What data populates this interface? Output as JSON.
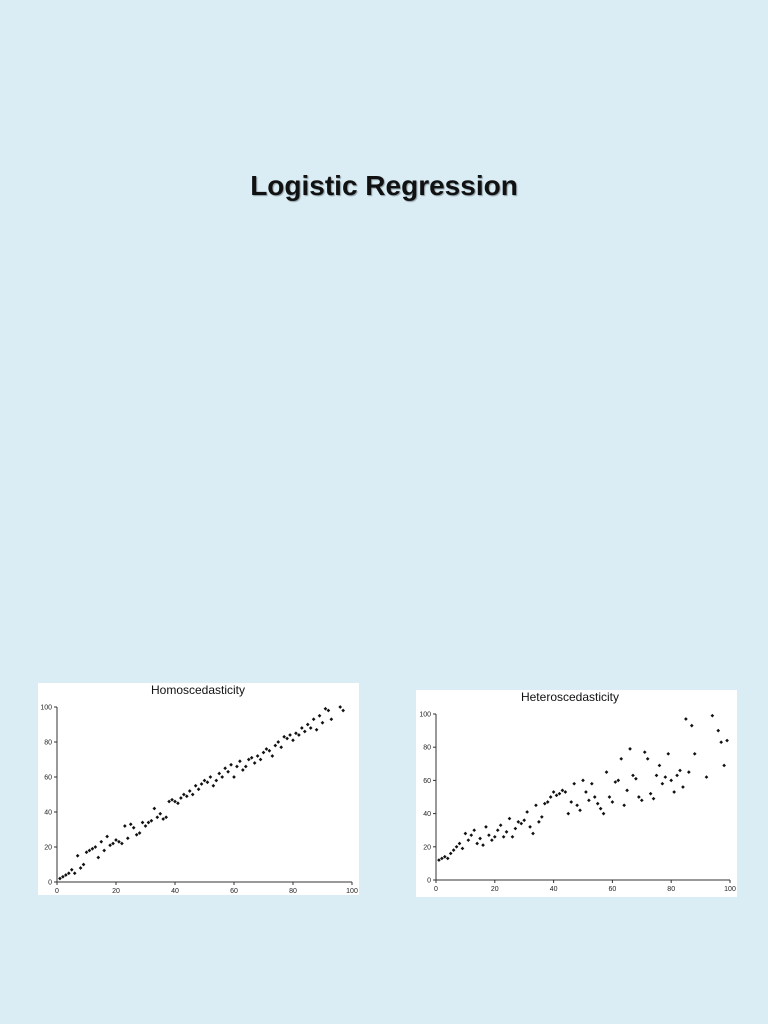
{
  "slide": {
    "title": "Logistic Regression"
  },
  "chart_data": [
    {
      "type": "scatter",
      "title": "Homoscedasticity",
      "xlabel": "",
      "ylabel": "",
      "xlim": [
        0,
        100
      ],
      "ylim": [
        0,
        100
      ],
      "x_ticks": [
        0,
        20,
        40,
        60,
        80,
        100
      ],
      "y_ticks": [
        0,
        20,
        40,
        60,
        80,
        100
      ],
      "grid": false,
      "series": [
        {
          "points": [
            [
              1,
              2
            ],
            [
              2,
              3
            ],
            [
              3,
              4
            ],
            [
              4,
              5
            ],
            [
              5,
              7
            ],
            [
              6,
              5
            ],
            [
              7,
              15
            ],
            [
              8,
              8
            ],
            [
              9,
              10
            ],
            [
              10,
              17
            ],
            [
              11,
              18
            ],
            [
              12,
              19
            ],
            [
              13,
              20
            ],
            [
              14,
              14
            ],
            [
              15,
              23
            ],
            [
              16,
              18
            ],
            [
              17,
              26
            ],
            [
              18,
              21
            ],
            [
              19,
              22
            ],
            [
              20,
              24
            ],
            [
              21,
              23
            ],
            [
              22,
              22
            ],
            [
              23,
              32
            ],
            [
              24,
              25
            ],
            [
              25,
              33
            ],
            [
              26,
              31
            ],
            [
              27,
              27
            ],
            [
              28,
              28
            ],
            [
              29,
              34
            ],
            [
              30,
              32
            ],
            [
              31,
              34
            ],
            [
              32,
              35
            ],
            [
              33,
              42
            ],
            [
              34,
              37
            ],
            [
              35,
              39
            ],
            [
              36,
              36
            ],
            [
              37,
              37
            ],
            [
              38,
              46
            ],
            [
              39,
              47
            ],
            [
              40,
              46
            ],
            [
              41,
              45
            ],
            [
              42,
              48
            ],
            [
              43,
              50
            ],
            [
              44,
              49
            ],
            [
              45,
              52
            ],
            [
              46,
              50
            ],
            [
              47,
              55
            ],
            [
              48,
              53
            ],
            [
              49,
              56
            ],
            [
              50,
              58
            ],
            [
              51,
              57
            ],
            [
              52,
              60
            ],
            [
              53,
              55
            ],
            [
              54,
              58
            ],
            [
              55,
              62
            ],
            [
              56,
              60
            ],
            [
              57,
              65
            ],
            [
              58,
              63
            ],
            [
              59,
              67
            ],
            [
              60,
              60
            ],
            [
              61,
              66
            ],
            [
              62,
              69
            ],
            [
              63,
              64
            ],
            [
              64,
              66
            ],
            [
              65,
              70
            ],
            [
              66,
              71
            ],
            [
              67,
              68
            ],
            [
              68,
              72
            ],
            [
              69,
              70
            ],
            [
              70,
              74
            ],
            [
              71,
              76
            ],
            [
              72,
              75
            ],
            [
              73,
              72
            ],
            [
              74,
              78
            ],
            [
              75,
              80
            ],
            [
              76,
              77
            ],
            [
              77,
              83
            ],
            [
              78,
              82
            ],
            [
              79,
              84
            ],
            [
              80,
              81
            ],
            [
              81,
              85
            ],
            [
              82,
              84
            ],
            [
              83,
              88
            ],
            [
              84,
              86
            ],
            [
              85,
              90
            ],
            [
              86,
              88
            ],
            [
              87,
              93
            ],
            [
              88,
              87
            ],
            [
              89,
              95
            ],
            [
              90,
              91
            ],
            [
              91,
              99
            ],
            [
              92,
              98
            ],
            [
              93,
              93
            ],
            [
              96,
              100
            ],
            [
              97,
              98
            ]
          ]
        }
      ]
    },
    {
      "type": "scatter",
      "title": "Heteroscedasticity",
      "xlabel": "",
      "ylabel": "",
      "xlim": [
        0,
        100
      ],
      "ylim": [
        0,
        100
      ],
      "x_ticks": [
        0,
        20,
        40,
        60,
        80,
        100
      ],
      "y_ticks": [
        0,
        20,
        40,
        60,
        80,
        100
      ],
      "grid": false,
      "series": [
        {
          "points": [
            [
              1,
              12
            ],
            [
              2,
              13
            ],
            [
              3,
              14
            ],
            [
              4,
              13
            ],
            [
              5,
              16
            ],
            [
              6,
              18
            ],
            [
              7,
              20
            ],
            [
              8,
              22
            ],
            [
              9,
              19
            ],
            [
              10,
              28
            ],
            [
              11,
              24
            ],
            [
              12,
              27
            ],
            [
              13,
              30
            ],
            [
              14,
              22
            ],
            [
              15,
              25
            ],
            [
              16,
              21
            ],
            [
              17,
              32
            ],
            [
              18,
              27
            ],
            [
              19,
              24
            ],
            [
              20,
              26
            ],
            [
              21,
              30
            ],
            [
              22,
              33
            ],
            [
              23,
              26
            ],
            [
              24,
              29
            ],
            [
              25,
              37
            ],
            [
              26,
              26
            ],
            [
              27,
              31
            ],
            [
              28,
              35
            ],
            [
              29,
              34
            ],
            [
              30,
              36
            ],
            [
              31,
              41
            ],
            [
              32,
              32
            ],
            [
              33,
              28
            ],
            [
              34,
              45
            ],
            [
              35,
              35
            ],
            [
              36,
              38
            ],
            [
              37,
              46
            ],
            [
              38,
              47
            ],
            [
              39,
              50
            ],
            [
              40,
              53
            ],
            [
              41,
              51
            ],
            [
              42,
              52
            ],
            [
              43,
              54
            ],
            [
              44,
              53
            ],
            [
              45,
              40
            ],
            [
              46,
              47
            ],
            [
              47,
              58
            ],
            [
              48,
              45
            ],
            [
              49,
              42
            ],
            [
              50,
              60
            ],
            [
              51,
              53
            ],
            [
              52,
              48
            ],
            [
              53,
              58
            ],
            [
              54,
              50
            ],
            [
              55,
              46
            ],
            [
              56,
              43
            ],
            [
              57,
              40
            ],
            [
              58,
              65
            ],
            [
              59,
              50
            ],
            [
              60,
              47
            ],
            [
              61,
              59
            ],
            [
              62,
              60
            ],
            [
              63,
              73
            ],
            [
              64,
              45
            ],
            [
              65,
              54
            ],
            [
              66,
              79
            ],
            [
              67,
              63
            ],
            [
              68,
              61
            ],
            [
              69,
              50
            ],
            [
              70,
              48
            ],
            [
              71,
              77
            ],
            [
              72,
              73
            ],
            [
              73,
              52
            ],
            [
              74,
              49
            ],
            [
              75,
              63
            ],
            [
              76,
              69
            ],
            [
              77,
              58
            ],
            [
              78,
              62
            ],
            [
              79,
              76
            ],
            [
              80,
              60
            ],
            [
              81,
              53
            ],
            [
              82,
              63
            ],
            [
              83,
              66
            ],
            [
              84,
              56
            ],
            [
              85,
              97
            ],
            [
              86,
              65
            ],
            [
              87,
              93
            ],
            [
              88,
              76
            ],
            [
              92,
              62
            ],
            [
              94,
              99
            ],
            [
              96,
              90
            ],
            [
              97,
              83
            ],
            [
              98,
              69
            ],
            [
              99,
              84
            ]
          ]
        }
      ]
    }
  ]
}
